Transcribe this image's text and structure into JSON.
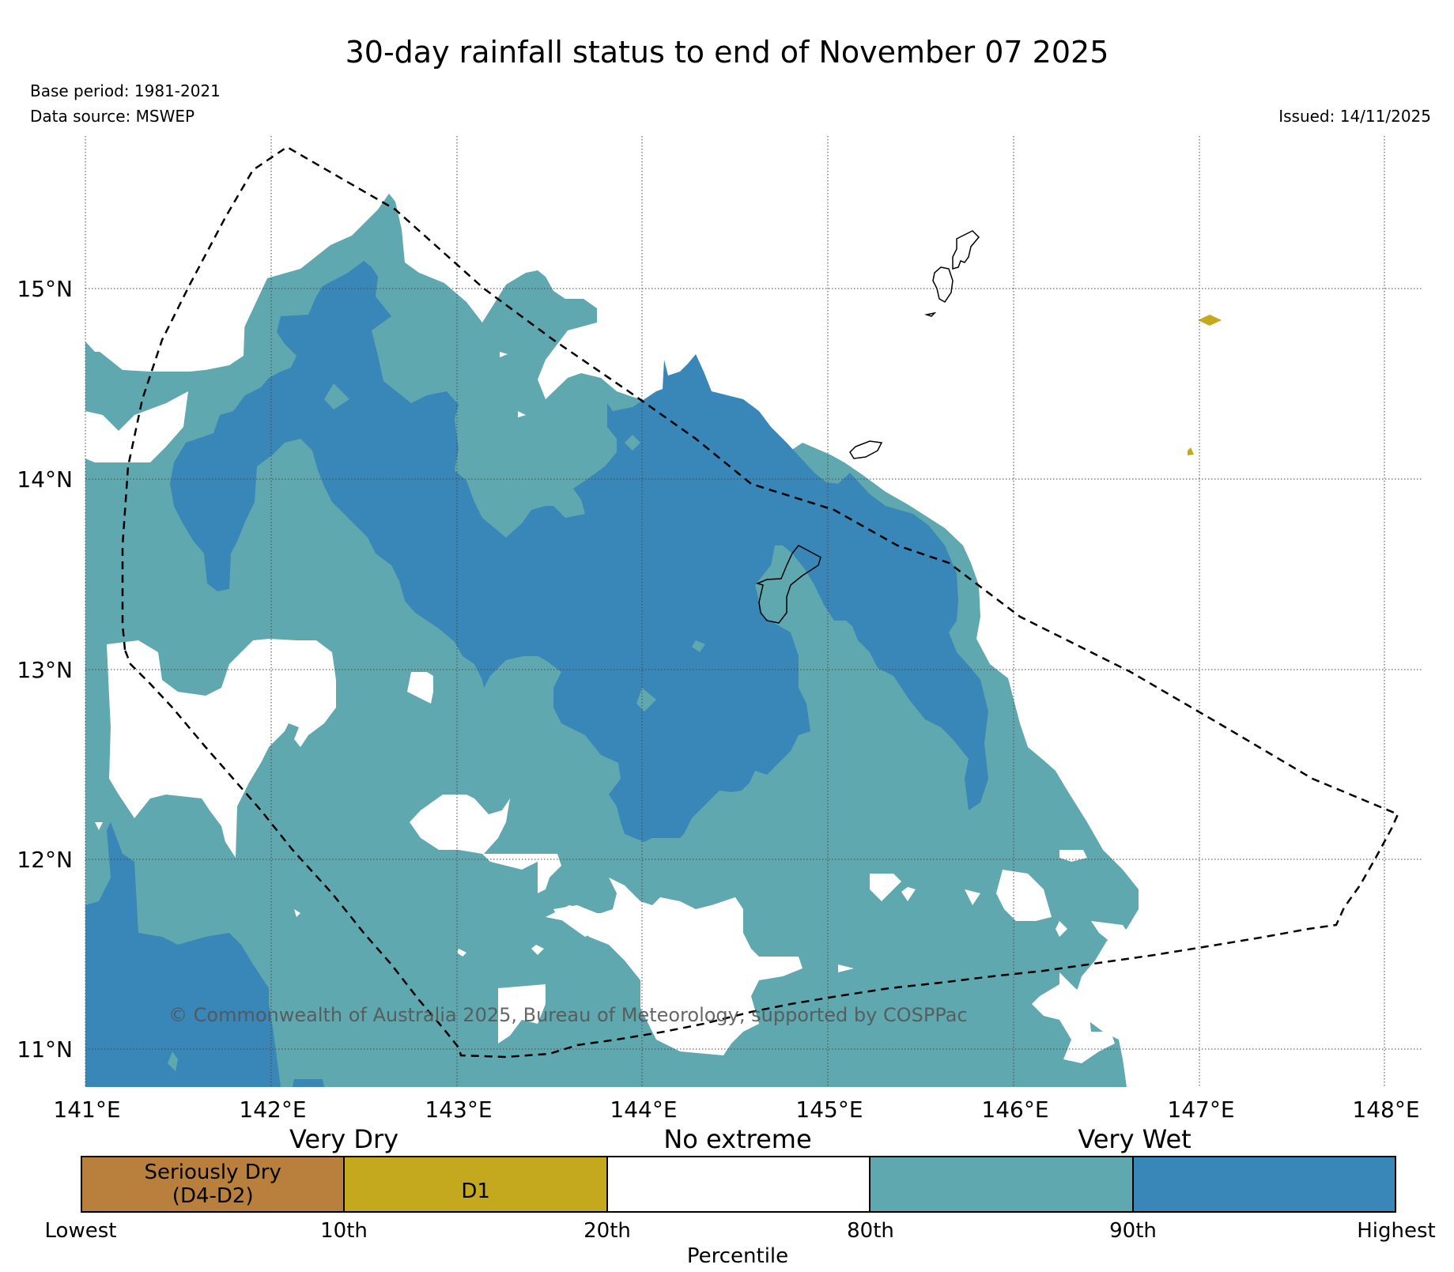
{
  "title": "30-day rainfall status to end of November 07 2025",
  "meta": {
    "base_period": "Base period: 1981-2021",
    "data_source": "Data source: MSWEP",
    "issued": "Issued: 14/11/2025"
  },
  "copyright": "© Commonwealth of Australia 2025, Bureau of Meteorology, supported by COSPPac",
  "axes": {
    "lon_labels": [
      "141°E",
      "142°E",
      "143°E",
      "144°E",
      "145°E",
      "146°E",
      "147°E",
      "148°E"
    ],
    "lat_labels": [
      "15°N",
      "14°N",
      "13°N",
      "12°N",
      "11°N"
    ]
  },
  "legend": {
    "headings": {
      "very_dry": "Very Dry",
      "no_extreme": "No extreme",
      "very_wet": "Very Wet"
    },
    "categories": [
      {
        "label": "Seriously Dry\n(D4-D2)",
        "color": "#b8803c"
      },
      {
        "label": "D1",
        "color": "#c4a81e"
      },
      {
        "label": "",
        "color": "#ffffff"
      },
      {
        "label": "",
        "color": "#5fa8af"
      },
      {
        "label": "",
        "color": "#3986b8"
      }
    ],
    "ticks": [
      "Lowest",
      "10th",
      "20th",
      "80th",
      "90th",
      "Highest"
    ],
    "axis_label": "Percentile"
  },
  "colors": {
    "above_80th": "#5fa8af",
    "above_90th": "#3986b8",
    "d1": "#c4a81e"
  }
}
